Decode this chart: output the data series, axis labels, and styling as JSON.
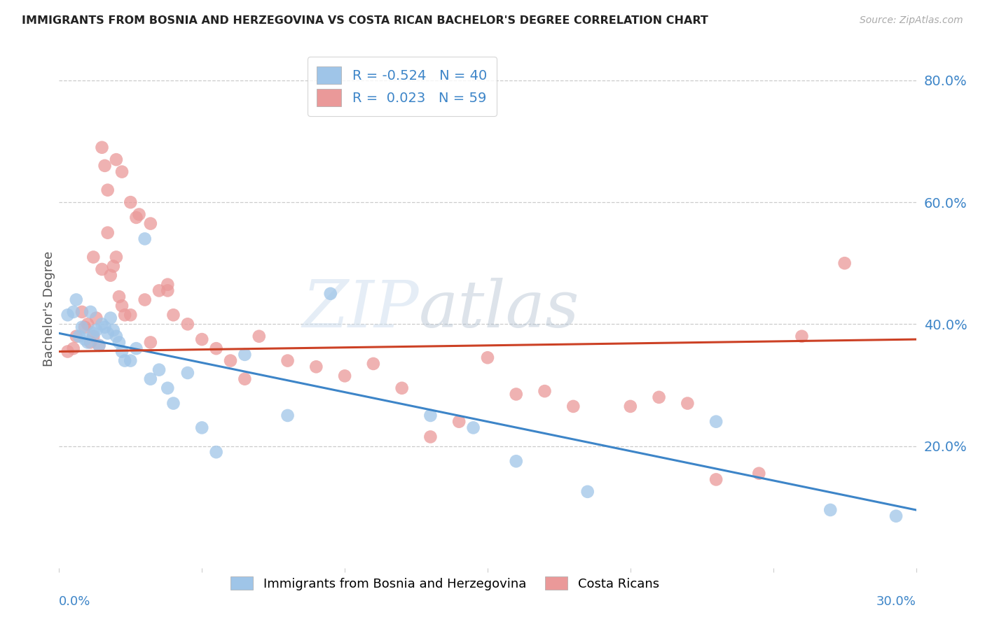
{
  "title": "IMMIGRANTS FROM BOSNIA AND HERZEGOVINA VS COSTA RICAN BACHELOR'S DEGREE CORRELATION CHART",
  "source": "Source: ZipAtlas.com",
  "ylabel": "Bachelor's Degree",
  "right_yticks": [
    "20.0%",
    "40.0%",
    "60.0%",
    "80.0%"
  ],
  "right_ytick_vals": [
    0.2,
    0.4,
    0.6,
    0.8
  ],
  "legend_blue_R": "-0.524",
  "legend_blue_N": "40",
  "legend_pink_R": "0.023",
  "legend_pink_N": "59",
  "legend_label_blue": "Immigrants from Bosnia and Herzegovina",
  "legend_label_pink": "Costa Ricans",
  "blue_color": "#9fc5e8",
  "pink_color": "#ea9999",
  "blue_line_color": "#3d85c8",
  "pink_line_color": "#cc4125",
  "watermark_zip": "ZIP",
  "watermark_atlas": "atlas",
  "xlim": [
    0.0,
    0.3
  ],
  "ylim": [
    0.0,
    0.85
  ],
  "blue_points_x": [
    0.003,
    0.005,
    0.006,
    0.007,
    0.008,
    0.009,
    0.01,
    0.011,
    0.012,
    0.013,
    0.014,
    0.015,
    0.016,
    0.017,
    0.018,
    0.019,
    0.02,
    0.021,
    0.022,
    0.023,
    0.025,
    0.027,
    0.03,
    0.032,
    0.035,
    0.038,
    0.04,
    0.045,
    0.05,
    0.055,
    0.065,
    0.08,
    0.095,
    0.13,
    0.145,
    0.16,
    0.185,
    0.23,
    0.27,
    0.293
  ],
  "blue_points_y": [
    0.415,
    0.42,
    0.44,
    0.38,
    0.395,
    0.375,
    0.37,
    0.42,
    0.385,
    0.39,
    0.365,
    0.4,
    0.395,
    0.385,
    0.41,
    0.39,
    0.38,
    0.37,
    0.355,
    0.34,
    0.34,
    0.36,
    0.54,
    0.31,
    0.325,
    0.295,
    0.27,
    0.32,
    0.23,
    0.19,
    0.35,
    0.25,
    0.45,
    0.25,
    0.23,
    0.175,
    0.125,
    0.24,
    0.095,
    0.085
  ],
  "pink_points_x": [
    0.003,
    0.005,
    0.006,
    0.008,
    0.009,
    0.01,
    0.011,
    0.012,
    0.013,
    0.014,
    0.015,
    0.016,
    0.017,
    0.018,
    0.019,
    0.02,
    0.021,
    0.022,
    0.023,
    0.025,
    0.027,
    0.03,
    0.032,
    0.035,
    0.038,
    0.04,
    0.045,
    0.05,
    0.055,
    0.06,
    0.065,
    0.07,
    0.08,
    0.09,
    0.1,
    0.11,
    0.12,
    0.13,
    0.14,
    0.15,
    0.16,
    0.17,
    0.18,
    0.2,
    0.21,
    0.22,
    0.23,
    0.245,
    0.26,
    0.275,
    0.012,
    0.015,
    0.017,
    0.02,
    0.022,
    0.025,
    0.028,
    0.032,
    0.038
  ],
  "pink_points_y": [
    0.355,
    0.36,
    0.38,
    0.42,
    0.395,
    0.4,
    0.37,
    0.38,
    0.41,
    0.365,
    0.69,
    0.66,
    0.62,
    0.48,
    0.495,
    0.51,
    0.445,
    0.43,
    0.415,
    0.415,
    0.575,
    0.44,
    0.37,
    0.455,
    0.455,
    0.415,
    0.4,
    0.375,
    0.36,
    0.34,
    0.31,
    0.38,
    0.34,
    0.33,
    0.315,
    0.335,
    0.295,
    0.215,
    0.24,
    0.345,
    0.285,
    0.29,
    0.265,
    0.265,
    0.28,
    0.27,
    0.145,
    0.155,
    0.38,
    0.5,
    0.51,
    0.49,
    0.55,
    0.67,
    0.65,
    0.6,
    0.58,
    0.565,
    0.465
  ],
  "blue_line_x": [
    0.0,
    0.3
  ],
  "blue_line_y": [
    0.385,
    0.095
  ],
  "pink_line_x": [
    0.0,
    0.3
  ],
  "pink_line_y": [
    0.355,
    0.375
  ]
}
